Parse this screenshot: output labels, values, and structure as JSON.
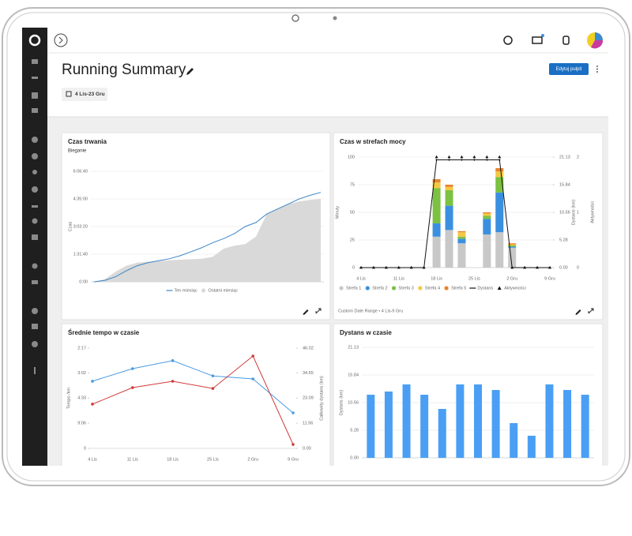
{
  "header": {
    "title": "Running Summary",
    "date_range": "4 Lis-23 Gru",
    "button": "Edytuj pulpit"
  },
  "panels": [
    {
      "type": "line",
      "title": "Czas trwania",
      "subtitle": "Bieganie",
      "ylabel": "Czas",
      "grid": true,
      "legend": "bottom",
      "ylim": [
        0,
        22000
      ],
      "yticks": [
        {
          "value": 0,
          "label": "0:00"
        },
        {
          "value": 5500,
          "label": "1:31:40"
        },
        {
          "value": 11000,
          "label": "3:03:20"
        },
        {
          "value": 16500,
          "label": "4:35:00"
        },
        {
          "value": 22000,
          "label": "6:06:40"
        }
      ],
      "series": [
        {
          "name": "Ten miesiąc",
          "color": "#3d85c6",
          "style": "line",
          "values": [
            0,
            300,
            1000,
            2200,
            3200,
            3800,
            4200,
            4600,
            5200,
            6000,
            6800,
            7800,
            8600,
            9600,
            11000,
            11800,
            13500,
            14500,
            15500,
            16500,
            17200,
            17800
          ]
        },
        {
          "name": "Ostatni miesiąc",
          "color": "#d9d9d9",
          "style": "area",
          "values": [
            0,
            500,
            2000,
            3200,
            3800,
            4000,
            4100,
            4300,
            4400,
            4500,
            4600,
            5000,
            6600,
            7200,
            7500,
            9000,
            13500,
            14500,
            15500,
            16000,
            16300,
            16500
          ]
        }
      ]
    },
    {
      "type": "stacked_bar_combo",
      "title": "Czas w strefach mocy",
      "ylabel": "Minuty",
      "y2label": "Dystans (km)",
      "y3label": "Aktywności",
      "grid": true,
      "legend": "bottom",
      "footer": "Custom Date Range • 4 Lis-9 Gru",
      "categories": [
        "4 Lis",
        null,
        null,
        "11 Lis",
        null,
        null,
        "18 Lis",
        null,
        null,
        "25 Lis",
        null,
        null,
        "2 Gru",
        null,
        null,
        "9 Gru"
      ],
      "ylim": [
        0,
        100
      ],
      "yticks": [
        0,
        25,
        50,
        75,
        100
      ],
      "y2lim": [
        0,
        21.13
      ],
      "y2ticks": [
        {
          "value": 0,
          "label": "0.00"
        },
        5.28,
        10.56,
        15.84,
        21.13
      ],
      "y3lim": [
        0,
        2
      ],
      "y3ticks": [
        0,
        1,
        2
      ],
      "series": [
        {
          "name": "Strefa 1",
          "color": "#c8c8c8",
          "values": [
            null,
            null,
            null,
            null,
            null,
            null,
            28,
            34,
            22,
            null,
            30,
            32,
            18,
            null,
            null,
            null
          ]
        },
        {
          "name": "Strefa 2",
          "color": "#3b8fe0",
          "values": [
            null,
            null,
            null,
            null,
            null,
            null,
            12,
            22,
            4,
            null,
            14,
            36,
            1,
            null,
            null,
            null
          ]
        },
        {
          "name": "Strefa 3",
          "color": "#7cc142",
          "values": [
            null,
            null,
            null,
            null,
            null,
            null,
            32,
            14,
            2,
            null,
            3,
            14,
            1,
            null,
            null,
            null
          ]
        },
        {
          "name": "Strefa 4",
          "color": "#f5c842",
          "values": [
            null,
            null,
            null,
            null,
            null,
            null,
            5,
            3,
            4,
            null,
            2,
            5,
            1,
            null,
            null,
            null
          ]
        },
        {
          "name": "Strefa 5",
          "color": "#e8842c",
          "values": [
            null,
            null,
            null,
            null,
            null,
            null,
            3,
            2,
            1,
            null,
            1,
            3,
            1,
            null,
            null,
            null
          ]
        },
        {
          "name": "Dystans",
          "color": "#111111",
          "axis": "y2",
          "marker": "diamond",
          "values": [
            0,
            0,
            0,
            0,
            0,
            0,
            20.6,
            20.6,
            20.6,
            20.6,
            20.6,
            20.6,
            0,
            0,
            0,
            0
          ]
        },
        {
          "name": "Aktywności",
          "color": "#111111",
          "axis": "y3",
          "marker": "triangle",
          "values": [
            0,
            0,
            0,
            0,
            0,
            0,
            2,
            2,
            2,
            2,
            2,
            2,
            0,
            0,
            0,
            0
          ]
        }
      ]
    },
    {
      "type": "line",
      "title": "Średnie tempo w czasie",
      "ylabel": "Tempo /km",
      "y2label": "Całkowity dystans (km)",
      "grid": false,
      "categories": [
        "4 Lis",
        "11 Lis",
        "18 Lis",
        "25 Lis",
        "2 Gru",
        "9 Gru"
      ],
      "ylim": [
        0,
        26.28
      ],
      "yticks": [
        {
          "value": 0,
          "label": "0"
        },
        {
          "value": 6.59,
          "label": "9:06"
        },
        {
          "value": 13.19,
          "label": "4:33"
        },
        {
          "value": 19.78,
          "label": "3:02"
        },
        {
          "value": 26.28,
          "label": "2:17"
        }
      ],
      "y2lim": [
        0,
        46.02
      ],
      "y2ticks": [
        {
          "value": 0,
          "label": "0.00"
        },
        11.56,
        23.09,
        34.65,
        46.02
      ],
      "series": [
        {
          "color": "#4a9be0",
          "style": "line",
          "markers": true,
          "values": [
            17.6,
            20.9,
            23.0,
            19.0,
            18.2,
            9.3
          ]
        },
        {
          "color": "#d03a3a",
          "style": "line",
          "markers": true,
          "axis": "y2",
          "values": [
            20.3,
            27.9,
            30.8,
            27.5,
            42.4,
            1.8
          ]
        }
      ]
    },
    {
      "type": "bar",
      "title": "Dystans w czasie",
      "ylabel": "Dystans (km)",
      "grid": true,
      "color": "#4a9ff5",
      "ylim": [
        0,
        21.13
      ],
      "yticks": [
        {
          "value": 0,
          "label": "0.00"
        },
        5.28,
        10.56,
        15.84,
        21.13
      ],
      "values": [
        12.07,
        12.68,
        14.04,
        12.07,
        9.36,
        14.04,
        14.04,
        12.98,
        6.64,
        4.23,
        14.04,
        12.98,
        12.07
      ]
    }
  ]
}
